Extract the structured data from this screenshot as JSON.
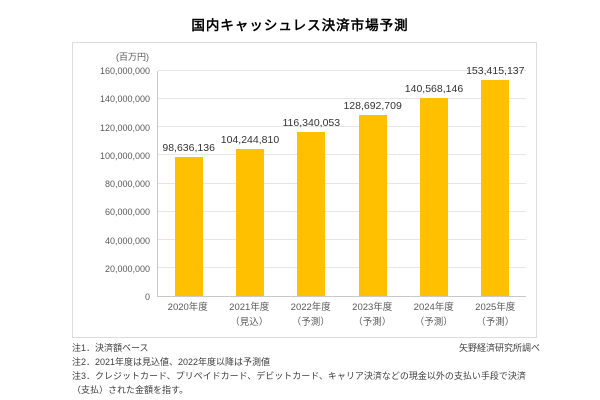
{
  "page": {
    "title": "国内キャッシュレス決済市場予測"
  },
  "chart_data": {
    "type": "bar",
    "title": "国内キャッシュレス決済市場予測",
    "unit_label": "(百万円)",
    "categories": [
      "2020年度",
      "2021年度",
      "2022年度",
      "2023年度",
      "2024年度",
      "2025年度"
    ],
    "category_sublabels": [
      "",
      "（見込）",
      "（予測）",
      "（予測）",
      "（予測）",
      "（予測）"
    ],
    "values": [
      98636136,
      104244810,
      116340053,
      128692709,
      140568146,
      153415137
    ],
    "value_labels": [
      "98,636,136",
      "104,244,810",
      "116,340,053",
      "128,692,709",
      "140,568,146",
      "153,415,137"
    ],
    "xlabel": "",
    "ylabel": "百万円",
    "ylim": [
      0,
      160000000
    ],
    "ytick_step": 20000000,
    "ytick_labels": [
      "0",
      "20,000,000",
      "40,000,000",
      "60,000,000",
      "80,000,000",
      "100,000,000",
      "120,000,000",
      "140,000,000",
      "160,000,000"
    ],
    "grid": true,
    "legend": "none",
    "bar_color": "#FFC000"
  },
  "footnotes": {
    "note1": "注1．決済額ベース",
    "note2": "注2．2021年度は見込値、2022年度以降は予測値",
    "note3": "注3．クレジットカード、プリペイドカード、デビットカード、キャリア決済などの現金以外の支払い手段で決済（支払）された金額を指す。",
    "source": "矢野経済研究所調べ"
  },
  "colors": {
    "bar": "#FFC000",
    "gridline": "#E6E6E6",
    "axis_line": "#C9C9C9",
    "tick_text": "#595959",
    "value_text": "#333333",
    "title_text": "#000000"
  }
}
